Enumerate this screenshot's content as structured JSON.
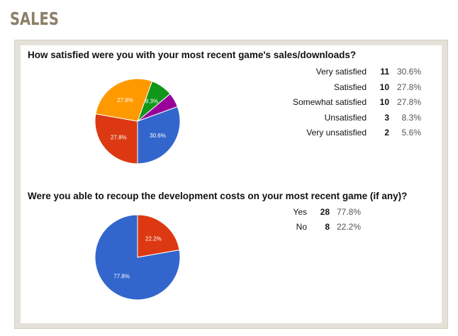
{
  "page": {
    "section_title": "SALES"
  },
  "colors": {
    "blue": "#3366cc",
    "red": "#dc3912",
    "orange": "#ff9900",
    "green": "#109618",
    "purple": "#990099",
    "frame": "#e4e1d8",
    "title": "#8c7f69"
  },
  "chart_data": [
    {
      "type": "pie",
      "title": "How satisfied were you with your most recent game's sales/downloads?",
      "categories": [
        "Very satisfied",
        "Satisfied",
        "Somewhat satisfied",
        "Unsatisfied",
        "Very unsatisfied"
      ],
      "values": [
        11,
        10,
        10,
        3,
        2
      ],
      "percents": [
        "30.6%",
        "27.8%",
        "27.8%",
        "8.3%",
        "5.6%"
      ],
      "colors": [
        "#3366cc",
        "#dc3912",
        "#ff9900",
        "#109618",
        "#990099"
      ],
      "legend_placement": "right"
    },
    {
      "type": "pie",
      "title": "Were you able to recoup the development costs on your most recent game (if any)?",
      "categories": [
        "Yes",
        "No"
      ],
      "values": [
        28,
        8
      ],
      "percents": [
        "77.8%",
        "22.2%"
      ],
      "colors": [
        "#3366cc",
        "#dc3912"
      ],
      "legend_placement": "right"
    }
  ]
}
